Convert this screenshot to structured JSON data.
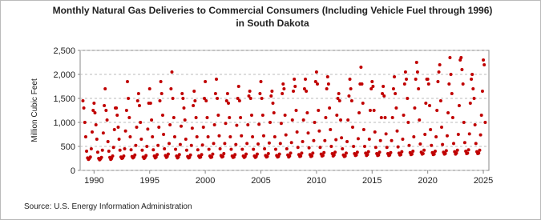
{
  "chart_data": {
    "type": "scatter",
    "title": "Monthly Natural Gas Deliveries to Commercial Consumers (Including Vehicle Fuel through 1996)",
    "subtitle": "in South Dakota",
    "y_label": "Million Cubic Feet",
    "source": "Source: U.S. Energy Information Administration",
    "xlim": [
      1988.75,
      2025.5
    ],
    "xticks": [
      1990,
      1995,
      2000,
      2005,
      2010,
      2015,
      2020,
      2025
    ],
    "ylim": [
      0,
      2500
    ],
    "yticks": [
      0,
      {
        "value": 500,
        "label": "500"
      },
      {
        "value": 1000,
        "label": "1,000"
      },
      {
        "value": 1500,
        "label": "1,500"
      },
      {
        "value": 2000,
        "label": "2,000"
      },
      {
        "value": 2500,
        "label": "2,500"
      }
    ],
    "grid": true,
    "series": [
      {
        "color": "#c00000",
        "x": [
          1989.0,
          1989.08,
          1989.17,
          1989.25,
          1989.33,
          1989.42,
          1989.5,
          1989.58,
          1989.67,
          1989.75,
          1989.83,
          1989.92,
          1990.0,
          1990.08,
          1990.17,
          1990.25,
          1990.33,
          1990.42,
          1990.5,
          1990.58,
          1990.67,
          1990.75,
          1990.83,
          1990.92,
          1991.0,
          1991.08,
          1991.17,
          1991.25,
          1991.33,
          1991.42,
          1991.5,
          1991.58,
          1991.67,
          1991.75,
          1991.83,
          1991.92,
          1992.0,
          1992.08,
          1992.17,
          1992.25,
          1992.33,
          1992.42,
          1992.5,
          1992.58,
          1992.67,
          1992.75,
          1992.83,
          1992.92,
          1993.0,
          1993.08,
          1993.17,
          1993.25,
          1993.33,
          1993.42,
          1993.5,
          1993.58,
          1993.67,
          1993.75,
          1993.83,
          1993.92,
          1994.0,
          1994.08,
          1994.17,
          1994.25,
          1994.33,
          1994.42,
          1994.5,
          1994.58,
          1994.67,
          1994.75,
          1994.83,
          1994.92,
          1995.0,
          1995.08,
          1995.17,
          1995.25,
          1995.33,
          1995.42,
          1995.5,
          1995.58,
          1995.67,
          1995.75,
          1995.83,
          1995.92,
          1996.0,
          1996.08,
          1996.17,
          1996.25,
          1996.33,
          1996.42,
          1996.5,
          1996.58,
          1996.67,
          1996.75,
          1996.83,
          1996.92,
          1997.0,
          1997.08,
          1997.17,
          1997.25,
          1997.33,
          1997.42,
          1997.5,
          1997.58,
          1997.67,
          1997.75,
          1997.83,
          1997.92,
          1998.0,
          1998.08,
          1998.17,
          1998.25,
          1998.33,
          1998.42,
          1998.5,
          1998.58,
          1998.67,
          1998.75,
          1998.83,
          1998.92,
          1999.0,
          1999.08,
          1999.17,
          1999.25,
          1999.33,
          1999.42,
          1999.5,
          1999.58,
          1999.67,
          1999.75,
          1999.83,
          1999.92,
          2000.0,
          2000.08,
          2000.17,
          2000.25,
          2000.33,
          2000.42,
          2000.5,
          2000.58,
          2000.67,
          2000.75,
          2000.83,
          2000.92,
          2001.0,
          2001.08,
          2001.17,
          2001.25,
          2001.33,
          2001.42,
          2001.5,
          2001.58,
          2001.67,
          2001.75,
          2001.83,
          2001.92,
          2002.0,
          2002.08,
          2002.17,
          2002.25,
          2002.33,
          2002.42,
          2002.5,
          2002.58,
          2002.67,
          2002.75,
          2002.83,
          2002.92,
          2003.0,
          2003.08,
          2003.17,
          2003.25,
          2003.33,
          2003.42,
          2003.5,
          2003.58,
          2003.67,
          2003.75,
          2003.83,
          2003.92,
          2004.0,
          2004.08,
          2004.17,
          2004.25,
          2004.33,
          2004.42,
          2004.5,
          2004.58,
          2004.67,
          2004.75,
          2004.83,
          2004.92,
          2005.0,
          2005.08,
          2005.17,
          2005.25,
          2005.33,
          2005.42,
          2005.5,
          2005.58,
          2005.67,
          2005.75,
          2005.83,
          2005.92,
          2006.0,
          2006.08,
          2006.17,
          2006.25,
          2006.33,
          2006.42,
          2006.5,
          2006.58,
          2006.67,
          2006.75,
          2006.83,
          2006.92,
          2007.0,
          2007.08,
          2007.17,
          2007.25,
          2007.33,
          2007.42,
          2007.5,
          2007.58,
          2007.67,
          2007.75,
          2007.83,
          2007.92,
          2008.0,
          2008.08,
          2008.17,
          2008.25,
          2008.33,
          2008.42,
          2008.5,
          2008.58,
          2008.67,
          2008.75,
          2008.83,
          2008.92,
          2009.0,
          2009.08,
          2009.17,
          2009.25,
          2009.33,
          2009.42,
          2009.5,
          2009.58,
          2009.67,
          2009.75,
          2009.83,
          2009.92,
          2010.0,
          2010.08,
          2010.17,
          2010.25,
          2010.33,
          2010.42,
          2010.5,
          2010.58,
          2010.67,
          2010.75,
          2010.83,
          2010.92,
          2011.0,
          2011.08,
          2011.17,
          2011.25,
          2011.33,
          2011.42,
          2011.5,
          2011.58,
          2011.67,
          2011.75,
          2011.83,
          2011.92,
          2012.0,
          2012.08,
          2012.17,
          2012.25,
          2012.33,
          2012.42,
          2012.5,
          2012.58,
          2012.67,
          2012.75,
          2012.83,
          2012.92,
          2013.0,
          2013.08,
          2013.17,
          2013.25,
          2013.33,
          2013.42,
          2013.5,
          2013.58,
          2013.67,
          2013.75,
          2013.83,
          2013.92,
          2014.0,
          2014.08,
          2014.17,
          2014.25,
          2014.33,
          2014.42,
          2014.5,
          2014.58,
          2014.67,
          2014.75,
          2014.83,
          2014.92,
          2015.0,
          2015.08,
          2015.17,
          2015.25,
          2015.33,
          2015.42,
          2015.5,
          2015.58,
          2015.67,
          2015.75,
          2015.83,
          2015.92,
          2016.0,
          2016.08,
          2016.17,
          2016.25,
          2016.33,
          2016.42,
          2016.5,
          2016.58,
          2016.67,
          2016.75,
          2016.83,
          2016.92,
          2017.0,
          2017.08,
          2017.17,
          2017.25,
          2017.33,
          2017.42,
          2017.5,
          2017.58,
          2017.67,
          2017.75,
          2017.83,
          2017.92,
          2018.0,
          2018.08,
          2018.17,
          2018.25,
          2018.33,
          2018.42,
          2018.5,
          2018.58,
          2018.67,
          2018.75,
          2018.83,
          2018.92,
          2019.0,
          2019.08,
          2019.17,
          2019.25,
          2019.33,
          2019.42,
          2019.5,
          2019.58,
          2019.67,
          2019.75,
          2019.83,
          2019.92,
          2020.0,
          2020.08,
          2020.17,
          2020.25,
          2020.33,
          2020.42,
          2020.5,
          2020.58,
          2020.67,
          2020.75,
          2020.83,
          2020.92,
          2021.0,
          2021.08,
          2021.17,
          2021.25,
          2021.33,
          2021.42,
          2021.5,
          2021.58,
          2021.67,
          2021.75,
          2021.83,
          2021.92,
          2022.0,
          2022.08,
          2022.17,
          2022.25,
          2022.33,
          2022.42,
          2022.5,
          2022.58,
          2022.67,
          2022.75,
          2022.83,
          2022.92,
          2023.0,
          2023.08,
          2023.17,
          2023.25,
          2023.33,
          2023.42,
          2023.5,
          2023.58,
          2023.67,
          2023.75,
          2023.83,
          2023.92,
          2024.0,
          2024.08,
          2024.17,
          2024.25,
          2024.33,
          2024.42,
          2024.5,
          2024.58,
          2024.67,
          2024.75,
          2024.83,
          2024.92,
          2025.0,
          2025.08,
          2025.17
        ],
        "values": [
          1450,
          1300,
          1000,
          700,
          400,
          260,
          230,
          250,
          280,
          450,
          800,
          1250,
          1400,
          1200,
          950,
          650,
          380,
          250,
          220,
          240,
          270,
          420,
          780,
          1350,
          1700,
          1250,
          1050,
          600,
          400,
          270,
          230,
          250,
          300,
          480,
          850,
          1300,
          1300,
          1150,
          900,
          650,
          420,
          280,
          250,
          260,
          300,
          450,
          820,
          1250,
          1850,
          1500,
          1100,
          700,
          430,
          290,
          260,
          280,
          320,
          520,
          900,
          1450,
          1600,
          1350,
          1000,
          650,
          420,
          280,
          250,
          270,
          310,
          500,
          860,
          1400,
          1700,
          1400,
          1050,
          700,
          430,
          300,
          260,
          280,
          330,
          520,
          900,
          1450,
          1850,
          1600,
          1150,
          750,
          450,
          310,
          270,
          290,
          340,
          560,
          950,
          1700,
          2050,
          1500,
          1100,
          700,
          440,
          300,
          260,
          280,
          330,
          540,
          920,
          1600,
          1500,
          1300,
          1050,
          650,
          420,
          290,
          260,
          270,
          320,
          520,
          880,
          1350,
          1650,
          1450,
          1100,
          700,
          430,
          300,
          270,
          280,
          330,
          530,
          900,
          1500,
          1850,
          1450,
          1100,
          700,
          440,
          300,
          270,
          280,
          340,
          560,
          950,
          1600,
          1900,
          1500,
          1150,
          720,
          450,
          310,
          280,
          290,
          350,
          560,
          980,
          1450,
          1600,
          1400,
          1100,
          700,
          440,
          300,
          270,
          280,
          330,
          540,
          940,
          1500,
          1750,
          1450,
          1100,
          720,
          440,
          300,
          270,
          290,
          340,
          560,
          950,
          1550,
          1650,
          1500,
          1150,
          700,
          440,
          300,
          270,
          290,
          340,
          550,
          960,
          1600,
          1850,
          1500,
          1150,
          720,
          450,
          310,
          280,
          290,
          350,
          570,
          1000,
          1550,
          1650,
          1400,
          1200,
          700,
          440,
          310,
          280,
          290,
          340,
          560,
          980,
          1600,
          1800,
          1700,
          1150,
          740,
          450,
          320,
          280,
          300,
          360,
          580,
          1050,
          1650,
          1900,
          1750,
          1250,
          800,
          480,
          330,
          290,
          300,
          360,
          600,
          1050,
          1700,
          1900,
          1650,
          1200,
          780,
          470,
          330,
          290,
          300,
          360,
          620,
          1000,
          1850,
          2050,
          1800,
          1250,
          820,
          480,
          340,
          300,
          310,
          370,
          620,
          1100,
          1700,
          1950,
          1800,
          1300,
          850,
          500,
          350,
          300,
          320,
          380,
          640,
          1150,
          1500,
          1600,
          1450,
          1050,
          680,
          450,
          320,
          290,
          300,
          360,
          600,
          1050,
          1550,
          1900,
          1700,
          1450,
          900,
          500,
          350,
          310,
          320,
          380,
          660,
          1200,
          1800,
          2150,
          1800,
          1400,
          850,
          500,
          360,
          310,
          330,
          390,
          650,
          1250,
          1700,
          1850,
          1750,
          1250,
          800,
          480,
          350,
          310,
          320,
          380,
          620,
          1100,
          1600,
          1750,
          1550,
          1100,
          760,
          480,
          350,
          310,
          320,
          370,
          620,
          1100,
          1700,
          1950,
          1600,
          1300,
          820,
          490,
          360,
          320,
          330,
          390,
          650,
          1150,
          1800,
          2050,
          1900,
          1500,
          1000,
          520,
          370,
          330,
          340,
          400,
          700,
          1300,
          1900,
          2250,
          2050,
          1700,
          1050,
          550,
          380,
          340,
          350,
          420,
          750,
          1400,
          1900,
          1900,
          1800,
          1350,
          850,
          520,
          370,
          330,
          340,
          400,
          700,
          1250,
          1850,
          2050,
          2200,
          1450,
          900,
          540,
          380,
          340,
          350,
          410,
          720,
          1200,
          1800,
          2350,
          2000,
          1600,
          1100,
          560,
          390,
          340,
          360,
          420,
          750,
          1350,
          2300,
          2350,
          2100,
          1800,
          1000,
          580,
          400,
          350,
          360,
          430,
          760,
          1400,
          1900,
          2000,
          1700,
          1500,
          950,
          560,
          390,
          350,
          360,
          420,
          740,
          1150,
          1650,
          2300,
          2200,
          1000
        ]
      }
    ]
  }
}
